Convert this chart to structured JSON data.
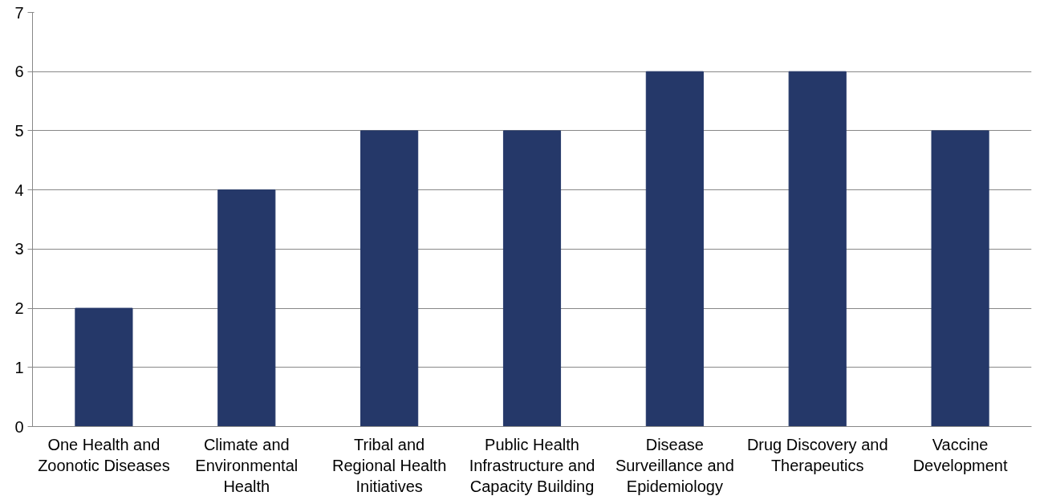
{
  "chart_data": {
    "type": "bar",
    "categories": [
      "One Health and Zoonotic Diseases",
      "Climate and Environmental Health",
      "Tribal and Regional Health Initiatives",
      "Public Health Infrastructure and Capacity Building",
      "Disease Surveillance and Epidemiology",
      "Drug Discovery and Therapeutics",
      "Vaccine Development"
    ],
    "values": [
      2,
      4,
      5,
      5,
      6,
      6,
      5
    ],
    "color": "#253869",
    "ylim": [
      0,
      7
    ],
    "yticks": [
      0,
      1,
      2,
      3,
      4,
      5,
      6,
      7
    ],
    "grid": "y"
  }
}
